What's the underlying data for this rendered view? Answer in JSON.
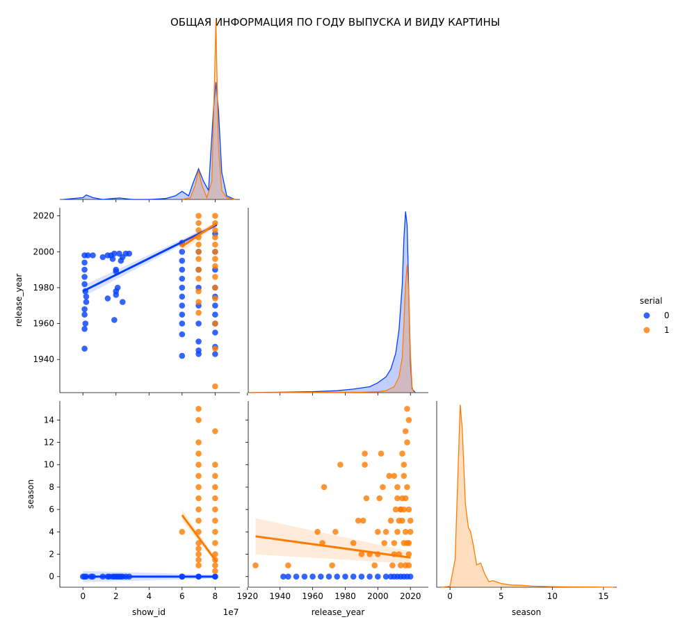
{
  "title": "ОБЩАЯ ИНФОРМАЦИЯ ПО ГОДУ ВЫПУСКА И ВИДУ КАРТИНЫ",
  "colors": {
    "serial_0": "#023eff",
    "serial_1": "#ff7c00"
  },
  "legend": {
    "title": "serial",
    "placement": "right",
    "entries": [
      {
        "label": "0",
        "color": "#023eff"
      },
      {
        "label": "1",
        "color": "#ff7c00"
      }
    ]
  },
  "axes": {
    "show_id": {
      "label": "show_id",
      "offset_text": "1e7",
      "range": [
        -1.4,
        9.5
      ],
      "ticks": [
        0,
        2,
        4,
        6,
        8
      ],
      "tick_labels": [
        "0",
        "2",
        "4",
        "6",
        "8"
      ]
    },
    "release_year": {
      "label": "release_year",
      "range": [
        1920.5,
        2031
      ],
      "ticks": [
        1920,
        1940,
        1960,
        1980,
        2000,
        2020
      ],
      "tick_labels": [
        "1920",
        "1940",
        "1960",
        "1980",
        "2000",
        "2020"
      ],
      "y_ticks": [
        1940,
        1960,
        1980,
        2000,
        2020
      ],
      "y_tick_labels": [
        "1940",
        "1960",
        "1980",
        "2000",
        "2020"
      ],
      "y_range": [
        1921.5,
        2024.5
      ]
    },
    "season": {
      "label": "season",
      "range": [
        -1.3,
        16.3
      ],
      "ticks": [
        0,
        5,
        10,
        15
      ],
      "tick_labels": [
        "0",
        "5",
        "10",
        "15"
      ],
      "y_ticks": [
        0,
        2,
        4,
        6,
        8,
        10,
        12,
        14
      ],
      "y_tick_labels": [
        "0",
        "2",
        "4",
        "6",
        "8",
        "10",
        "12",
        "14"
      ],
      "y_range": [
        -0.95,
        15.7
      ]
    }
  },
  "chart_data": [
    {
      "type": "area",
      "panel": "show_id-density",
      "x_variable": "show_id",
      "series": [
        {
          "name": "0",
          "color": "#023eff",
          "x": [
            -1.2,
            0,
            0.2,
            0.6,
            1.2,
            1.8,
            2.2,
            3,
            4,
            5,
            5.6,
            6,
            6.4,
            6.7,
            7,
            7.3,
            7.6,
            7.9,
            8.05,
            8.2,
            8.4,
            8.7,
            9.2
          ],
          "y": [
            0,
            0.01,
            0.025,
            0.01,
            0,
            0.005,
            0.008,
            0,
            0,
            0.005,
            0.02,
            0.045,
            0.02,
            0.1,
            0.17,
            0.1,
            0.05,
            0.5,
            0.65,
            0.5,
            0.15,
            0.02,
            0
          ]
        },
        {
          "name": "1",
          "color": "#ff7c00",
          "x": [
            6,
            6.5,
            6.8,
            7,
            7.2,
            7.5,
            7.8,
            8,
            8.05,
            8.1,
            8.2,
            8.4,
            8.7,
            9.2
          ],
          "y": [
            0,
            0.01,
            0.08,
            0.16,
            0.08,
            0.01,
            0.1,
            0.8,
            1.0,
            0.75,
            0.3,
            0.05,
            0.01,
            0
          ]
        }
      ]
    },
    {
      "type": "scatter",
      "panel": "release_year-vs-show_id",
      "x_variable": "show_id",
      "y_variable": "release_year",
      "series": [
        {
          "name": "0",
          "color": "#023eff",
          "x": [
            0.1,
            0.1,
            0.1,
            0.1,
            0.1,
            0.15,
            0.2,
            0.2,
            0.1,
            0.1,
            0.15,
            0.1,
            0.1,
            0.3,
            0.6,
            1.2,
            1.5,
            1.7,
            1.8,
            1.9,
            2.0,
            2.0,
            2.1,
            2.2,
            2.3,
            2.4,
            2.6,
            2.8,
            1.5,
            1.9,
            2.0,
            2.0,
            2.4,
            6.0,
            6.0,
            6.0,
            6.0,
            6.0,
            6.0,
            6.0,
            6.0,
            6.0,
            6.0,
            6.0,
            6.0,
            7.0,
            7.0,
            7.0,
            7.0,
            7.0,
            7.0,
            7.0,
            7.0,
            8.0,
            8.0,
            8.0,
            8.0,
            8.0,
            8.0,
            8.0,
            8.0,
            8.0,
            8.0,
            8.0
          ],
          "y": [
            1998,
            1994,
            1990,
            1986,
            1982,
            1978,
            1975,
            1972,
            1968,
            1965,
            1960,
            1957,
            1946,
            1998,
            1998,
            1997,
            1998,
            1998,
            1996,
            1999,
            1990,
            1989,
            1980,
            1999,
            1995,
            1997,
            1999,
            1999,
            1974,
            1962,
            1976,
            1978,
            1972,
            2005,
            2000,
            1995,
            1990,
            1985,
            1980,
            1975,
            1970,
            1965,
            1960,
            1954,
            1942,
            2000,
            1990,
            1980,
            1970,
            1960,
            1950,
            1945,
            1943,
            2010,
            2000,
            1990,
            1980,
            1975,
            1970,
            1965,
            1960,
            1955,
            1947,
            1943
          ]
        },
        {
          "name": "1",
          "color": "#ff7c00",
          "x": [
            6.0,
            7.0,
            7.0,
            7.0,
            7.0,
            7.0,
            7.0,
            7.0,
            7.0,
            7.0,
            7.0,
            7.0,
            7.0,
            8.0,
            8.0,
            8.0,
            8.0,
            8.0,
            8.0,
            8.0,
            8.0,
            8.0,
            8.0,
            8.0,
            8.0,
            8.0,
            8.0
          ],
          "y": [
            2004,
            2020,
            2016,
            2012,
            2008,
            2004,
            2000,
            1996,
            1990,
            1985,
            1978,
            1972,
            1966,
            2020,
            2016,
            2012,
            2008,
            2004,
            2000,
            1996,
            1992,
            1986,
            1980,
            1974,
            1960,
            1946,
            1925
          ]
        }
      ],
      "regression": [
        {
          "name": "0",
          "x": [
            0,
            8.1
          ],
          "y": [
            1978,
            2015
          ]
        },
        {
          "name": "1",
          "x": [
            6,
            8.1
          ],
          "y": [
            2003,
            2016
          ]
        }
      ]
    },
    {
      "type": "area",
      "panel": "release_year-density",
      "x_variable": "release_year",
      "series": [
        {
          "name": "0",
          "color": "#023eff",
          "x": [
            1921,
            1940,
            1960,
            1975,
            1985,
            1995,
            2000,
            2005,
            2008,
            2011,
            2013,
            2015,
            2016,
            2017,
            2018,
            2019,
            2020,
            2021,
            2023
          ],
          "y": [
            0,
            0.002,
            0.005,
            0.01,
            0.018,
            0.03,
            0.05,
            0.08,
            0.12,
            0.2,
            0.32,
            0.55,
            0.78,
            0.92,
            0.85,
            0.5,
            0.15,
            0.02,
            0
          ]
        },
        {
          "name": "1",
          "color": "#ff7c00",
          "x": [
            1921,
            1990,
            2000,
            2005,
            2010,
            2013,
            2015,
            2016,
            2017,
            2018,
            2019,
            2020,
            2021,
            2022
          ],
          "y": [
            0,
            0.002,
            0.005,
            0.01,
            0.03,
            0.08,
            0.18,
            0.35,
            0.55,
            0.65,
            0.5,
            0.2,
            0.03,
            0
          ]
        }
      ]
    },
    {
      "type": "scatter",
      "panel": "season-vs-show_id",
      "x_variable": "show_id",
      "y_variable": "season",
      "series": [
        {
          "name": "0",
          "color": "#023eff",
          "x": [
            0,
            0.1,
            0.2,
            0.5,
            0.6,
            1.2,
            1.5,
            1.6,
            1.8,
            1.9,
            2.0,
            2.1,
            2.2,
            2.3,
            2.4,
            2.6,
            2.8,
            6.0,
            6.0,
            7.0,
            7.0,
            8.0,
            8.0
          ],
          "y": [
            0,
            0,
            0,
            0,
            0,
            0,
            0,
            0,
            0,
            0,
            0,
            0,
            0,
            0,
            0,
            0,
            0,
            0,
            0,
            0,
            0,
            0,
            0
          ]
        },
        {
          "name": "1",
          "color": "#ff7c00",
          "x": [
            6.0,
            7.0,
            7.0,
            7.0,
            7.0,
            7.0,
            7.0,
            7.0,
            7.0,
            7.0,
            7.0,
            7.0,
            7.0,
            7.0,
            7.0,
            7.0,
            7.0,
            8.0,
            8.0,
            8.0,
            8.0,
            8.0,
            8.0,
            8.0,
            8.0,
            8.0,
            8.0,
            8.0,
            8.0,
            8.0
          ],
          "y": [
            4,
            1,
            2,
            3,
            4,
            5,
            6,
            7,
            8,
            9,
            10,
            11,
            12,
            14,
            15,
            1.5,
            2.5,
            1,
            2,
            3,
            4,
            5,
            6,
            7,
            8,
            9,
            10,
            13,
            0.5,
            1.5
          ]
        }
      ],
      "regression": [
        {
          "name": "0",
          "x": [
            0,
            8.1
          ],
          "y": [
            0,
            0
          ]
        },
        {
          "name": "1",
          "x": [
            6,
            8.1
          ],
          "y": [
            5.5,
            1.3
          ]
        }
      ]
    },
    {
      "type": "scatter",
      "panel": "season-vs-release_year",
      "x_variable": "release_year",
      "y_variable": "season",
      "series": [
        {
          "name": "0",
          "color": "#023eff",
          "x": [
            1942,
            1945,
            1950,
            1955,
            1960,
            1965,
            1970,
            1975,
            1980,
            1985,
            1990,
            1995,
            2000,
            2005,
            2008,
            2010,
            2012,
            2014,
            2016,
            2018,
            2020
          ],
          "y": [
            0,
            0,
            0,
            0,
            0,
            0,
            0,
            0,
            0,
            0,
            0,
            0,
            0,
            0,
            0,
            0,
            0,
            0,
            0,
            0,
            0
          ]
        },
        {
          "name": "1",
          "color": "#ff7c00",
          "x": [
            1925,
            1945,
            1963,
            1966,
            1967,
            1972,
            1974,
            1977,
            1985,
            1988,
            1990,
            1991,
            1992,
            1992,
            1993,
            1995,
            1998,
            2000,
            2000,
            2001,
            2002,
            2003,
            2004,
            2005,
            2007,
            2008,
            2009,
            2010,
            2010,
            2012,
            2012,
            2013,
            2014,
            2014,
            2015,
            2015,
            2016,
            2016,
            2017,
            2017,
            2018,
            2018,
            2019,
            2019,
            2019,
            2020,
            2020,
            2019,
            2019,
            2017,
            2018,
            2016,
            2015,
            2014,
            2013,
            2012,
            2011,
            2010,
            2018,
            2017,
            2016
          ],
          "y": [
            1,
            1,
            4,
            3,
            8,
            1,
            4,
            10,
            3,
            5,
            2,
            5,
            11,
            10,
            7,
            2,
            1,
            2,
            4,
            7,
            11,
            8,
            3,
            4,
            9,
            5,
            1,
            3,
            9,
            4,
            8,
            2,
            1,
            6,
            7,
            5,
            3,
            9,
            4,
            13,
            12,
            15,
            1,
            2,
            3,
            4,
            5,
            6,
            14,
            7,
            8,
            10,
            11,
            6,
            5,
            7,
            6,
            2,
            3,
            1,
            6
          ]
        }
      ],
      "regression": [
        {
          "name": "1",
          "x": [
            1925,
            2020
          ],
          "y": [
            3.6,
            1.7
          ]
        }
      ]
    },
    {
      "type": "area",
      "panel": "season-density",
      "x_variable": "season",
      "series": [
        {
          "name": "1",
          "color": "#ff7c00",
          "x": [
            -0.8,
            0,
            0.5,
            0.8,
            1.0,
            1.2,
            1.5,
            1.8,
            2.0,
            2.3,
            2.6,
            3.0,
            3.4,
            3.8,
            4.2,
            5.0,
            6.0,
            7.0,
            8.0,
            10.0,
            12.0,
            14.0,
            16.0
          ],
          "y": [
            0,
            0.005,
            0.15,
            0.65,
            0.98,
            0.85,
            0.45,
            0.32,
            0.3,
            0.22,
            0.12,
            0.13,
            0.07,
            0.03,
            0.035,
            0.02,
            0.012,
            0.01,
            0.006,
            0.003,
            0.002,
            0.001,
            0
          ]
        }
      ]
    }
  ]
}
